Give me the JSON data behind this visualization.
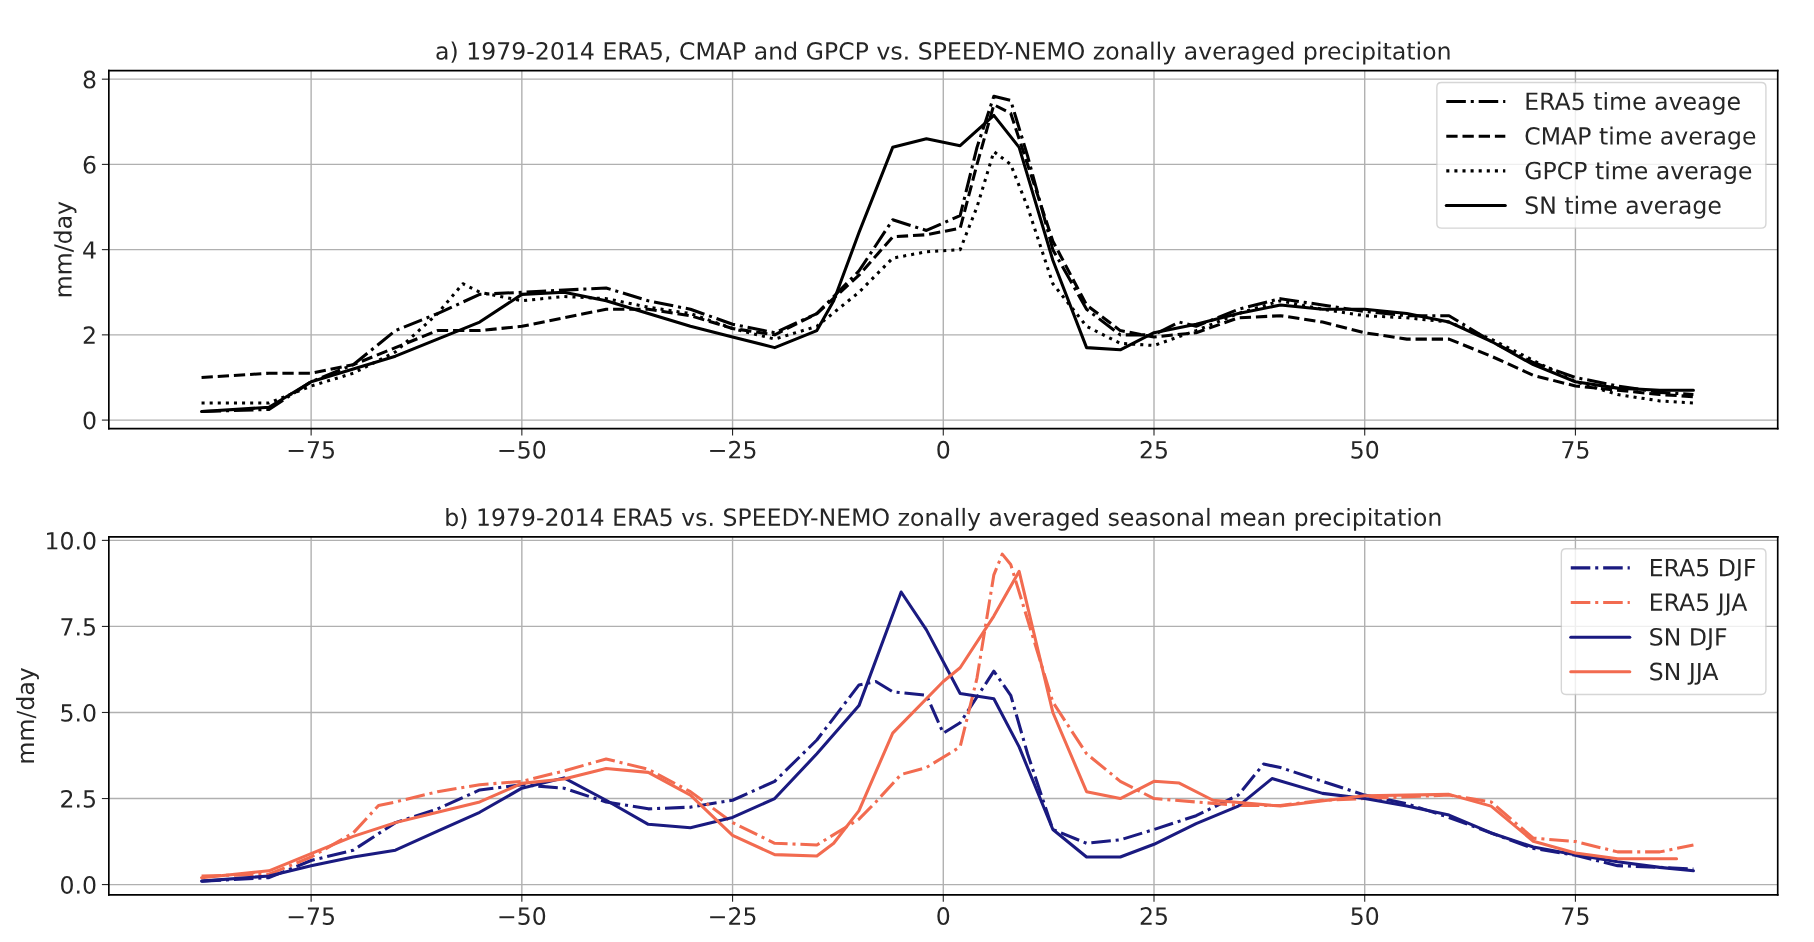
{
  "chart_data": [
    {
      "type": "line",
      "title": "a) 1979-2014 ERA5, CMAP and GPCP vs. SPEEDY-NEMO zonally averaged precipitation",
      "ylabel": "mm/day",
      "xlim": [
        -99,
        99
      ],
      "ylim": [
        -0.2,
        8.2
      ],
      "xticks": [
        {
          "value": -75,
          "label": "−75"
        },
        {
          "value": -50,
          "label": "−50"
        },
        {
          "value": -25,
          "label": "−25"
        },
        0,
        25,
        50,
        75
      ],
      "yticks": [
        0,
        2,
        4,
        6,
        8
      ],
      "grid": true,
      "legend": "top right",
      "series": [
        {
          "name": "ERA5 time aveage",
          "color": "#000000",
          "line_style": "dashdot",
          "x": [
            -88,
            -80,
            -75,
            -70,
            -65,
            -60,
            -55,
            -50,
            -45,
            -40,
            -35,
            -30,
            -25,
            -20,
            -15,
            -10,
            -6,
            -2,
            2,
            4,
            6,
            8,
            10,
            13,
            17,
            21,
            25,
            28,
            30,
            35,
            40,
            45,
            50,
            55,
            60,
            65,
            70,
            75,
            80,
            85,
            89
          ],
          "values": [
            0.2,
            0.25,
            0.9,
            1.3,
            2.1,
            2.5,
            2.95,
            3.0,
            3.05,
            3.1,
            2.8,
            2.6,
            2.25,
            2.05,
            2.5,
            3.5,
            4.7,
            4.45,
            4.8,
            6.4,
            7.6,
            7.5,
            6.2,
            4.0,
            2.6,
            2.0,
            2.0,
            2.3,
            2.2,
            2.6,
            2.85,
            2.7,
            2.55,
            2.45,
            2.45,
            1.85,
            1.35,
            1.0,
            0.8,
            0.65,
            0.6
          ]
        },
        {
          "name": "CMAP time average",
          "color": "#000000",
          "line_style": "dashed",
          "x": [
            -88,
            -80,
            -75,
            -70,
            -65,
            -60,
            -55,
            -50,
            -45,
            -40,
            -35,
            -30,
            -25,
            -20,
            -15,
            -10,
            -6,
            -2,
            2,
            4,
            6,
            8,
            10,
            13,
            17,
            21,
            25,
            30,
            35,
            40,
            45,
            50,
            55,
            60,
            65,
            70,
            75,
            80,
            85,
            89
          ],
          "values": [
            1.0,
            1.1,
            1.1,
            1.3,
            1.7,
            2.1,
            2.1,
            2.2,
            2.4,
            2.6,
            2.6,
            2.45,
            2.15,
            2.0,
            2.5,
            3.4,
            4.3,
            4.35,
            4.5,
            6.0,
            7.4,
            7.2,
            6.0,
            4.2,
            2.7,
            2.1,
            1.95,
            2.05,
            2.4,
            2.45,
            2.3,
            2.05,
            1.9,
            1.9,
            1.5,
            1.05,
            0.8,
            0.7,
            0.6,
            0.55
          ]
        },
        {
          "name": "GPCP time average",
          "color": "#000000",
          "line_style": "dotted",
          "x": [
            -88,
            -80,
            -75,
            -70,
            -65,
            -60,
            -57,
            -55,
            -50,
            -45,
            -40,
            -35,
            -30,
            -25,
            -20,
            -15,
            -10,
            -6,
            -2,
            2,
            4,
            6,
            8,
            10,
            13,
            17,
            21,
            25,
            30,
            35,
            40,
            45,
            50,
            55,
            60,
            65,
            70,
            75,
            80,
            85,
            89
          ],
          "values": [
            0.4,
            0.4,
            0.8,
            1.1,
            1.6,
            2.5,
            3.2,
            3.0,
            2.8,
            2.9,
            2.85,
            2.65,
            2.5,
            2.15,
            1.9,
            2.2,
            3.0,
            3.8,
            3.95,
            4.0,
            5.0,
            6.3,
            6.0,
            5.0,
            3.2,
            2.2,
            1.8,
            1.75,
            2.1,
            2.5,
            2.8,
            2.6,
            2.45,
            2.4,
            2.3,
            1.9,
            1.4,
            0.9,
            0.6,
            0.45,
            0.4
          ]
        },
        {
          "name": "SN time average",
          "color": "#000000",
          "line_style": "solid",
          "x": [
            -88,
            -80,
            -75,
            -70,
            -65,
            -60,
            -55,
            -50,
            -45,
            -40,
            -35,
            -30,
            -25,
            -20,
            -15,
            -13,
            -10,
            -6,
            -2,
            2,
            6,
            9,
            13,
            17,
            21,
            25,
            30,
            35,
            40,
            45,
            50,
            55,
            60,
            65,
            70,
            75,
            80,
            85,
            89
          ],
          "values": [
            0.2,
            0.3,
            0.9,
            1.2,
            1.5,
            1.9,
            2.3,
            2.95,
            3.0,
            2.8,
            2.5,
            2.2,
            1.95,
            1.7,
            2.1,
            2.8,
            4.4,
            6.4,
            6.6,
            6.44,
            7.15,
            6.4,
            3.75,
            1.7,
            1.65,
            2.05,
            2.25,
            2.5,
            2.7,
            2.6,
            2.6,
            2.5,
            2.3,
            1.85,
            1.3,
            0.9,
            0.75,
            0.7,
            0.7
          ]
        }
      ]
    },
    {
      "type": "line",
      "title": "b) 1979-2014 ERA5 vs. SPEEDY-NEMO zonally averaged seasonal mean precipitation",
      "ylabel": "mm/day",
      "xlim": [
        -99,
        99
      ],
      "ylim": [
        -0.3,
        10.1
      ],
      "xticks": [
        {
          "value": -75,
          "label": "−75"
        },
        {
          "value": -50,
          "label": "−50"
        },
        {
          "value": -25,
          "label": "−25"
        },
        0,
        25,
        50,
        75
      ],
      "yticks": [
        {
          "value": 0,
          "label": "0.0"
        },
        {
          "value": 2.5,
          "label": "2.5"
        },
        {
          "value": 5,
          "label": "5.0"
        },
        {
          "value": 7.5,
          "label": "7.5"
        },
        {
          "value": 10,
          "label": "10.0"
        }
      ],
      "grid": true,
      "legend": "top right",
      "series": [
        {
          "name": "ERA5 DJF",
          "color": "#1a1a80",
          "line_style": "dashdot",
          "x": [
            -88,
            -80,
            -75,
            -70,
            -65,
            -60,
            -55,
            -50,
            -45,
            -40,
            -35,
            -30,
            -25,
            -20,
            -15,
            -10,
            -8,
            -6,
            -2,
            0,
            2,
            6,
            8,
            10,
            13,
            17,
            21,
            25,
            30,
            35,
            38,
            40,
            45,
            50,
            55,
            60,
            65,
            70,
            75,
            80,
            85,
            89
          ],
          "values": [
            0.1,
            0.2,
            0.7,
            1.0,
            1.8,
            2.2,
            2.75,
            2.9,
            2.8,
            2.4,
            2.2,
            2.25,
            2.45,
            3.0,
            4.2,
            5.8,
            5.9,
            5.6,
            5.5,
            4.4,
            4.7,
            6.2,
            5.5,
            3.8,
            1.6,
            1.2,
            1.3,
            1.6,
            2.0,
            2.6,
            3.5,
            3.4,
            3.0,
            2.6,
            2.35,
            1.95,
            1.5,
            1.05,
            0.85,
            0.55,
            0.5,
            0.45
          ]
        },
        {
          "name": "ERA5 JJA",
          "color": "#f26b50",
          "line_style": "dashdot",
          "x": [
            -88,
            -80,
            -75,
            -70,
            -67,
            -65,
            -60,
            -55,
            -50,
            -45,
            -40,
            -35,
            -30,
            -25,
            -20,
            -15,
            -10,
            -8,
            -5,
            -2,
            2,
            4,
            6,
            7,
            8,
            10,
            13,
            17,
            21,
            25,
            30,
            35,
            40,
            45,
            50,
            55,
            60,
            65,
            70,
            75,
            80,
            85,
            89
          ],
          "values": [
            0.25,
            0.3,
            0.8,
            1.5,
            2.3,
            2.4,
            2.7,
            2.9,
            3.0,
            3.3,
            3.65,
            3.35,
            2.7,
            1.8,
            1.2,
            1.15,
            1.9,
            2.4,
            3.2,
            3.4,
            4.0,
            6.0,
            9.0,
            9.6,
            9.3,
            7.7,
            5.3,
            3.8,
            3.0,
            2.5,
            2.4,
            2.3,
            2.3,
            2.45,
            2.5,
            2.55,
            2.6,
            2.4,
            1.35,
            1.25,
            0.95,
            0.95,
            1.15
          ]
        },
        {
          "name": "SN DJF",
          "color": "#1a1a80",
          "line_style": "solid",
          "x": [
            -88,
            -80,
            -75,
            -70,
            -65,
            -60,
            -55,
            -50,
            -45,
            -40,
            -35,
            -30,
            -25,
            -20,
            -15,
            -10,
            -5,
            -2,
            2,
            6,
            9,
            13,
            17,
            21,
            25,
            30,
            35,
            39,
            45,
            50,
            55,
            60,
            65,
            70,
            75,
            80,
            85,
            89
          ],
          "values": [
            0.1,
            0.25,
            0.55,
            0.8,
            1.0,
            1.55,
            2.1,
            2.8,
            3.1,
            2.45,
            1.75,
            1.65,
            1.95,
            2.5,
            3.8,
            5.2,
            8.5,
            7.4,
            5.55,
            5.4,
            4.0,
            1.6,
            0.8,
            0.8,
            1.17,
            1.77,
            2.28,
            3.08,
            2.65,
            2.5,
            2.28,
            2.02,
            1.5,
            1.09,
            0.87,
            0.66,
            0.5,
            0.4
          ]
        },
        {
          "name": "SN JJA",
          "color": "#f26b50",
          "line_style": "solid",
          "x": [
            -88,
            -80,
            -75,
            -70,
            -65,
            -60,
            -55,
            -50,
            -45,
            -40,
            -35,
            -30,
            -25,
            -20,
            -15,
            -13,
            -10,
            -6,
            0,
            2,
            6,
            9,
            13,
            17,
            21,
            25,
            28,
            32,
            40,
            50,
            60,
            65,
            70,
            75,
            80,
            87
          ],
          "values": [
            0.2,
            0.4,
            0.9,
            1.4,
            1.8,
            2.1,
            2.4,
            2.94,
            3.07,
            3.37,
            3.26,
            2.6,
            1.43,
            0.87,
            0.83,
            1.2,
            2.15,
            4.4,
            5.9,
            6.3,
            7.8,
            9.1,
            5.0,
            2.7,
            2.5,
            3.0,
            2.95,
            2.45,
            2.28,
            2.58,
            2.62,
            2.28,
            1.26,
            0.92,
            0.75,
            0.75
          ]
        }
      ]
    }
  ]
}
